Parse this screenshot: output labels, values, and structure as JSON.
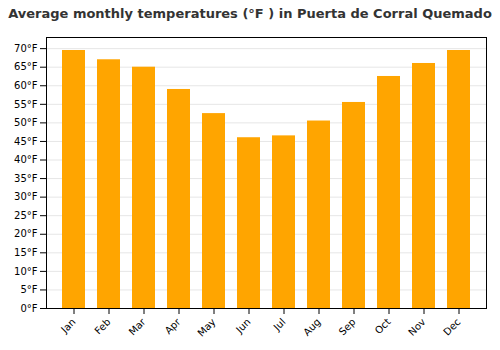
{
  "chart_data": {
    "type": "bar",
    "title": "Average monthly temperatures (°F ) in Puerta de Corral Quemado",
    "categories": [
      "Jan",
      "Feb",
      "Mar",
      "Apr",
      "May",
      "Jun",
      "Jul",
      "Aug",
      "Sep",
      "Oct",
      "Nov",
      "Dec"
    ],
    "values": [
      69.5,
      67.0,
      65.0,
      59.0,
      52.5,
      46.0,
      46.5,
      50.5,
      55.5,
      62.5,
      66.0,
      69.5
    ],
    "color": "#FFA500",
    "ylim": [
      0,
      73
    ],
    "yticks": [
      {
        "value": 0,
        "label": "0°F"
      },
      {
        "value": 5,
        "label": "5°F"
      },
      {
        "value": 10,
        "label": "10°F"
      },
      {
        "value": 15,
        "label": "15°F"
      },
      {
        "value": 20,
        "label": "20°F"
      },
      {
        "value": 25,
        "label": "25°F"
      },
      {
        "value": 30,
        "label": "30°F"
      },
      {
        "value": 35,
        "label": "35°F"
      },
      {
        "value": 40,
        "label": "40°F"
      },
      {
        "value": 45,
        "label": "45°F"
      },
      {
        "value": 50,
        "label": "50°F"
      },
      {
        "value": 55,
        "label": "55°F"
      },
      {
        "value": 60,
        "label": "60°F"
      },
      {
        "value": 65,
        "label": "65°F"
      },
      {
        "value": 70,
        "label": "70°F"
      }
    ],
    "grid": true
  }
}
